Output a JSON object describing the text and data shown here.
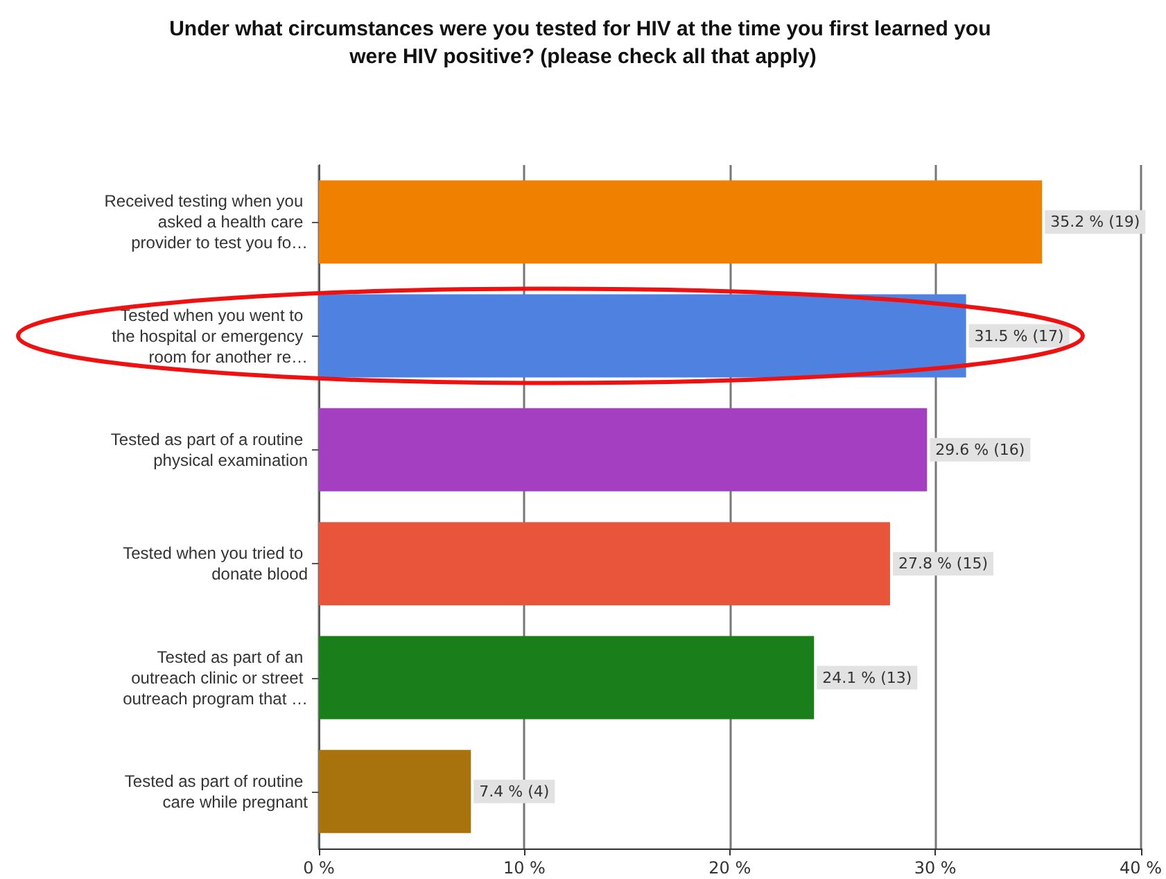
{
  "chart_data": {
    "type": "bar",
    "orientation": "horizontal",
    "title": "Under what circumstances were you tested for HIV at the time you first learned you were HIV positive? (please check all that apply)",
    "categories": [
      "Received testing when you asked a health care provider to test you fo…",
      "Tested when you went to the hospital or emergency room for another re…",
      "Tested as part of a routine physical examination",
      "Tested when you tried to donate blood",
      "Tested as part of an outreach clinic or street outreach program that …",
      "Tested as part of routine care while pregnant"
    ],
    "values": [
      35.2,
      31.5,
      29.6,
      27.8,
      24.1,
      7.4
    ],
    "colors": [
      "#f08000",
      "#4f82e0",
      "#a43fc2",
      "#e8553a",
      "#1a7f1a",
      "#a8720c"
    ],
    "value_labels": [
      "35.2 % (19)",
      "31.5 % (17)",
      "29.6 % (16)",
      "27.8 % (15)",
      "24.1 % (13)",
      "7.4 % (4)"
    ],
    "xlim": [
      0,
      40
    ],
    "xticks": [
      {
        "value": 0,
        "label": "0 %"
      },
      {
        "value": 10,
        "label": "10 %"
      },
      {
        "value": 20,
        "label": "20 %"
      },
      {
        "value": 30,
        "label": "30 %"
      },
      {
        "value": 40,
        "label": "40 %"
      }
    ],
    "grid": "x"
  }
}
